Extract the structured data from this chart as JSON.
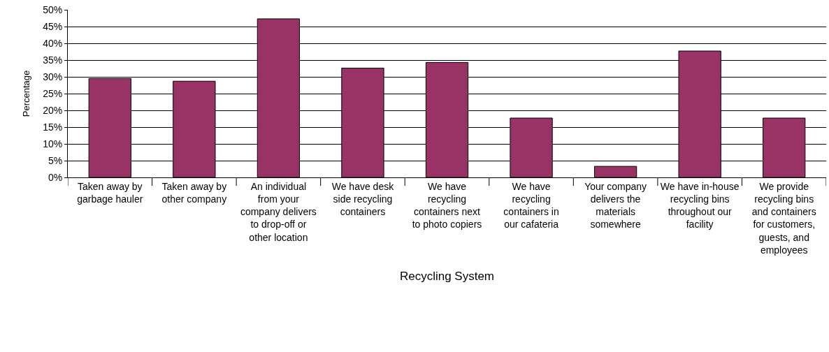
{
  "chart_data": {
    "type": "bar",
    "xlabel": "Recycling System",
    "ylabel": "Percentage",
    "categories": [
      "Taken away by garbage hauler",
      "Taken away by other company",
      "An individual from your company delivers to drop-off or other location",
      "We have desk side recycling containers",
      "We have recycling containers next to photo copiers",
      "We have recycling containers in our cafateria",
      "Your company delivers the materials somewhere",
      "We have in-house recycling bins throughout our facility",
      "We provide recycling bins and containers for customers, guests, and employees"
    ],
    "values": [
      29.5,
      28.7,
      47.3,
      32.6,
      34.3,
      17.7,
      3.3,
      37.7,
      17.7
    ],
    "color": "#993366",
    "ylim": [
      0,
      50
    ],
    "yticks": [
      {
        "value": 0,
        "label": "0%"
      },
      {
        "value": 5,
        "label": "5%"
      },
      {
        "value": 10,
        "label": "10%"
      },
      {
        "value": 15,
        "label": "15%"
      },
      {
        "value": 20,
        "label": "20%"
      },
      {
        "value": 25,
        "label": "25%"
      },
      {
        "value": 30,
        "label": "30%"
      },
      {
        "value": 35,
        "label": "35%"
      },
      {
        "value": 40,
        "label": "40%"
      },
      {
        "value": 45,
        "label": "45%"
      },
      {
        "value": 50,
        "label": "50%"
      }
    ],
    "grid": "y"
  }
}
